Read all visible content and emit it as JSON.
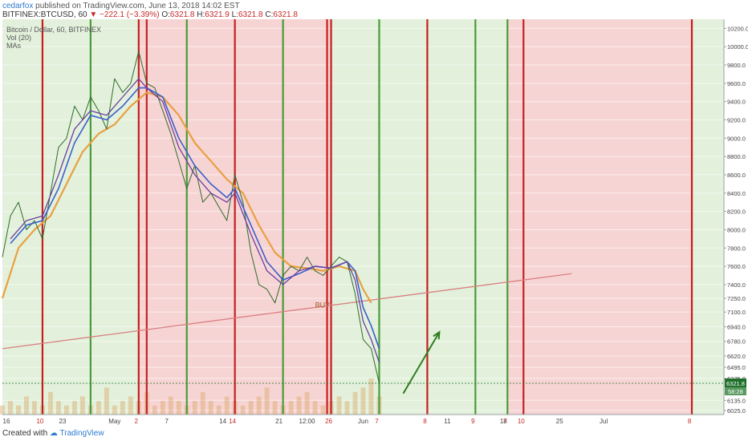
{
  "header": {
    "user": "cedarfox",
    "published": "published on TradingView.com, June 13, 2018 14:02 EST",
    "symbol": "BITFINEX:BTCUSD, 60",
    "change": "−222.1 (−3.39%)",
    "o_label": "O:",
    "o_value": "6321.8",
    "h_label": "H:",
    "h_value": "6321.9",
    "l_label": "L:",
    "l_value": "6321.8",
    "c_label": "C:",
    "c_value": "6321.8"
  },
  "legend": {
    "title": "Bitcoin / Dollar, 60, BITFINEX",
    "vol": "Vol (20)",
    "mas": "MAs"
  },
  "footer": {
    "created": "Created with",
    "brand": "TradingView"
  },
  "colors": {
    "green_zone": "#e3f1dc",
    "red_zone": "#f7d4d4",
    "green_line": "#4a9a3a",
    "red_line": "#c41f1f",
    "price": "#2f6a2a",
    "ma_fast": "#6b3fa0",
    "ma_mid": "#3a5fcd",
    "ma_slow": "#e8a040",
    "trend": "#d98080",
    "arrow": "#2e7d1e",
    "last_price_bg": "#1f6f2a"
  },
  "chart_data": {
    "type": "line",
    "title": "Bitcoin / Dollar, 60, BITFINEX",
    "y_ticks": [
      10200,
      10000,
      9800,
      9600,
      9400,
      9200,
      9000,
      8800,
      8600,
      8400,
      8200,
      8000,
      7800,
      7600,
      7400,
      7250,
      7100,
      6940,
      6780,
      6620,
      6495,
      6375,
      6135,
      6025
    ],
    "x_ticks": [
      {
        "label": "16",
        "col": 0.5
      },
      {
        "label": "23",
        "col": 7.5
      },
      {
        "label": "May",
        "col": 14
      },
      {
        "label": "7",
        "col": 20.5
      },
      {
        "label": "14",
        "col": 27.5
      },
      {
        "label": "21",
        "col": 34.5
      },
      {
        "label": "12:00",
        "col": 38
      },
      {
        "label": "Jun",
        "col": 45
      },
      {
        "label": "11",
        "col": 55.5
      },
      {
        "label": "18",
        "col": 62.5
      },
      {
        "label": "25",
        "col": 69.5
      },
      {
        "label": "Jul",
        "col": 75
      }
    ],
    "cycle_labels": [
      {
        "label": "10",
        "col": 4.7
      },
      {
        "label": "2",
        "col": 16.7
      },
      {
        "label": "14",
        "col": 28.7
      },
      {
        "label": "26",
        "col": 40.7
      },
      {
        "label": "7",
        "col": 46.7
      },
      {
        "label": "8",
        "col": 52.7
      },
      {
        "label": "9",
        "col": 58.7
      },
      {
        "label": "7",
        "col": 62.7
      },
      {
        "label": "10",
        "col": 64.7
      },
      {
        "label": "8",
        "col": 85.7
      }
    ],
    "zones": [
      {
        "from": 0,
        "to": 5,
        "kind": "green"
      },
      {
        "from": 5,
        "to": 11,
        "kind": "green"
      },
      {
        "from": 11,
        "to": 17,
        "kind": "green"
      },
      {
        "from": 17,
        "to": 23,
        "kind": "red"
      },
      {
        "from": 23,
        "to": 29,
        "kind": "red"
      },
      {
        "from": 29,
        "to": 35,
        "kind": "red"
      },
      {
        "from": 35,
        "to": 41,
        "kind": "red"
      },
      {
        "from": 41,
        "to": 47,
        "kind": "green"
      },
      {
        "from": 47,
        "to": 53,
        "kind": "green"
      },
      {
        "from": 53,
        "to": 59,
        "kind": "green"
      },
      {
        "from": 59,
        "to": 63,
        "kind": "green"
      },
      {
        "from": 63,
        "to": 65,
        "kind": "red"
      },
      {
        "from": 65,
        "to": 86,
        "kind": "red"
      },
      {
        "from": 86,
        "to": 90,
        "kind": "green"
      }
    ],
    "vlines": [
      {
        "col": 5,
        "kind": "red"
      },
      {
        "col": 11,
        "kind": "green"
      },
      {
        "col": 17,
        "kind": "red"
      },
      {
        "col": 18,
        "kind": "red"
      },
      {
        "col": 23,
        "kind": "green"
      },
      {
        "col": 29,
        "kind": "red"
      },
      {
        "col": 35,
        "kind": "green"
      },
      {
        "col": 40.5,
        "kind": "red"
      },
      {
        "col": 41,
        "kind": "red"
      },
      {
        "col": 47,
        "kind": "green"
      },
      {
        "col": 53,
        "kind": "red"
      },
      {
        "col": 59,
        "kind": "green"
      },
      {
        "col": 63,
        "kind": "green"
      },
      {
        "col": 65,
        "kind": "red"
      },
      {
        "col": 86,
        "kind": "red"
      }
    ],
    "price": [
      [
        0,
        7700
      ],
      [
        1,
        8150
      ],
      [
        2,
        8300
      ],
      [
        3,
        8000
      ],
      [
        4,
        8100
      ],
      [
        5,
        7900
      ],
      [
        6,
        8400
      ],
      [
        7,
        8900
      ],
      [
        8,
        9000
      ],
      [
        9,
        9350
      ],
      [
        10,
        9200
      ],
      [
        11,
        9450
      ],
      [
        12,
        9300
      ],
      [
        13,
        9100
      ],
      [
        14,
        9650
      ],
      [
        15,
        9500
      ],
      [
        16,
        9600
      ],
      [
        17,
        9950
      ],
      [
        18,
        9600
      ],
      [
        19,
        9550
      ],
      [
        20,
        9300
      ],
      [
        21,
        9050
      ],
      [
        22,
        8750
      ],
      [
        23,
        8450
      ],
      [
        24,
        8700
      ],
      [
        25,
        8300
      ],
      [
        26,
        8400
      ],
      [
        27,
        8250
      ],
      [
        28,
        8100
      ],
      [
        29,
        8600
      ],
      [
        30,
        8300
      ],
      [
        31,
        7750
      ],
      [
        32,
        7400
      ],
      [
        33,
        7350
      ],
      [
        34,
        7200
      ],
      [
        35,
        7500
      ],
      [
        36,
        7600
      ],
      [
        37,
        7550
      ],
      [
        38,
        7700
      ],
      [
        39,
        7550
      ],
      [
        40,
        7500
      ],
      [
        41,
        7600
      ],
      [
        42,
        7700
      ],
      [
        43,
        7650
      ],
      [
        44,
        7300
      ],
      [
        45,
        6800
      ],
      [
        46,
        6700
      ],
      [
        47,
        6321.8
      ]
    ],
    "ma_fast": [
      [
        1,
        7900
      ],
      [
        3,
        8100
      ],
      [
        5,
        8150
      ],
      [
        7,
        8600
      ],
      [
        9,
        9100
      ],
      [
        11,
        9300
      ],
      [
        13,
        9250
      ],
      [
        15,
        9450
      ],
      [
        17,
        9650
      ],
      [
        18,
        9550
      ],
      [
        20,
        9400
      ],
      [
        22,
        8900
      ],
      [
        24,
        8600
      ],
      [
        26,
        8400
      ],
      [
        28,
        8300
      ],
      [
        29,
        8400
      ],
      [
        31,
        7950
      ],
      [
        33,
        7550
      ],
      [
        35,
        7400
      ],
      [
        37,
        7550
      ],
      [
        39,
        7600
      ],
      [
        41,
        7580
      ],
      [
        43,
        7650
      ],
      [
        44,
        7450
      ],
      [
        45,
        7000
      ],
      [
        46,
        6800
      ],
      [
        47,
        6550
      ]
    ],
    "ma_mid": [
      [
        1,
        7850
      ],
      [
        3,
        8050
      ],
      [
        5,
        8100
      ],
      [
        7,
        8450
      ],
      [
        9,
        8950
      ],
      [
        11,
        9250
      ],
      [
        13,
        9200
      ],
      [
        15,
        9350
      ],
      [
        17,
        9550
      ],
      [
        18,
        9550
      ],
      [
        20,
        9450
      ],
      [
        22,
        9000
      ],
      [
        24,
        8700
      ],
      [
        26,
        8500
      ],
      [
        28,
        8350
      ],
      [
        29,
        8450
      ],
      [
        31,
        8050
      ],
      [
        33,
        7650
      ],
      [
        35,
        7450
      ],
      [
        37,
        7520
      ],
      [
        39,
        7600
      ],
      [
        41,
        7580
      ],
      [
        43,
        7650
      ],
      [
        44,
        7550
      ],
      [
        45,
        7150
      ],
      [
        46,
        6950
      ],
      [
        47,
        6700
      ]
    ],
    "ma_slow": [
      [
        0,
        7250
      ],
      [
        2,
        7800
      ],
      [
        4,
        8000
      ],
      [
        6,
        8150
      ],
      [
        8,
        8500
      ],
      [
        10,
        8850
      ],
      [
        12,
        9050
      ],
      [
        14,
        9150
      ],
      [
        16,
        9350
      ],
      [
        18,
        9500
      ],
      [
        20,
        9450
      ],
      [
        22,
        9250
      ],
      [
        24,
        8950
      ],
      [
        26,
        8750
      ],
      [
        28,
        8550
      ],
      [
        30,
        8400
      ],
      [
        32,
        8050
      ],
      [
        34,
        7750
      ],
      [
        36,
        7600
      ],
      [
        38,
        7580
      ],
      [
        40,
        7550
      ],
      [
        42,
        7600
      ],
      [
        44,
        7550
      ],
      [
        45,
        7350
      ],
      [
        46,
        7200
      ]
    ],
    "volume": [
      2,
      3,
      2,
      4,
      3,
      2,
      5,
      3,
      2,
      3,
      4,
      2,
      3,
      6,
      2,
      3,
      4,
      3,
      5,
      2,
      3,
      4,
      3,
      2,
      3,
      5,
      3,
      2,
      4,
      3,
      2,
      3,
      4,
      6,
      3,
      2,
      3,
      4,
      5,
      3,
      2,
      3,
      4,
      3,
      5,
      6,
      8,
      4
    ],
    "trendline": [
      [
        0,
        6700
      ],
      [
        71,
        7520
      ]
    ],
    "buy_label": {
      "text": "BUY",
      "col": 39,
      "y": 7150
    },
    "arrow": [
      [
        50,
        6210
      ],
      [
        54.5,
        6880
      ]
    ],
    "last_price": "6321.8",
    "countdown": "58:28",
    "y_range": [
      5980,
      10300
    ],
    "x_range": [
      0,
      90
    ]
  }
}
